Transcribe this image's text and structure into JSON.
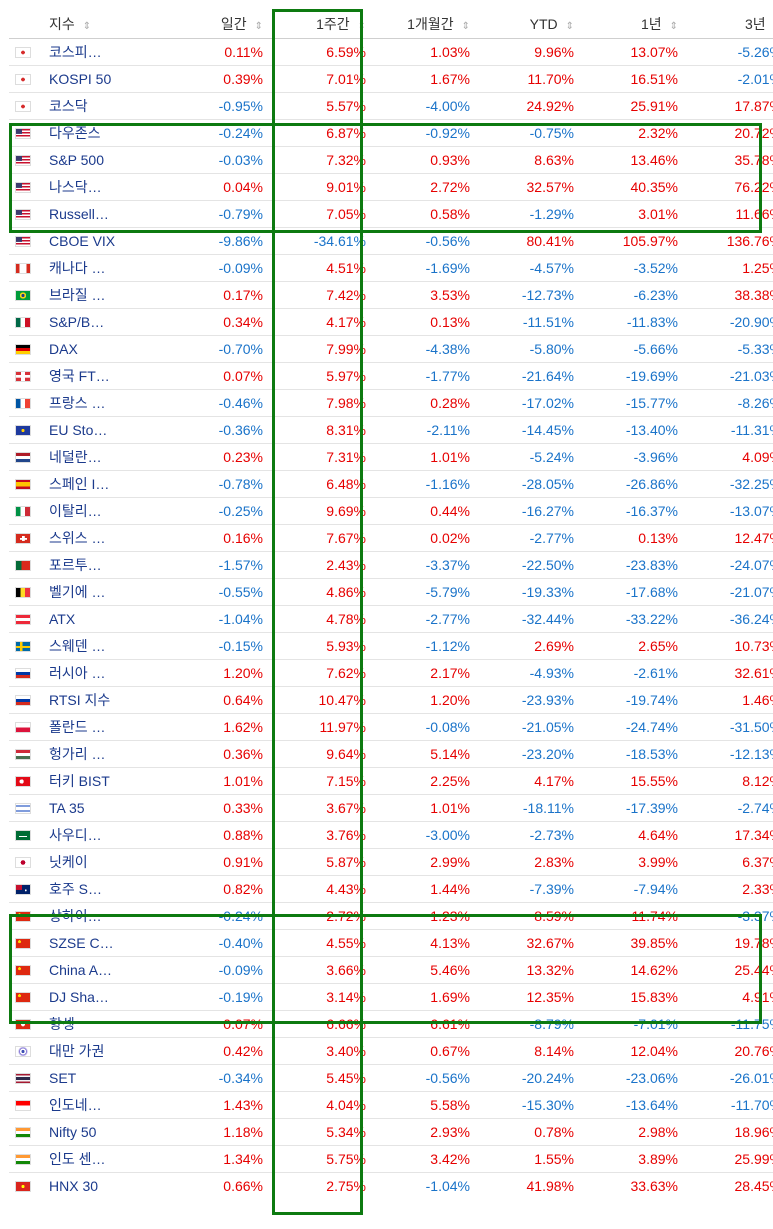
{
  "headers": {
    "name": "지수",
    "daily": "일간",
    "weekly": "1주간",
    "monthly": "1개월간",
    "ytd": "YTD",
    "oneyear": "1년",
    "threeyear": "3년",
    "sort_icon": "⇕"
  },
  "colors": {
    "up": "#e60000",
    "down": "#1a73c9",
    "highlight": "#0d7a10",
    "name": "#1b3a8c"
  },
  "rows": [
    {
      "flag": "kr",
      "name": "코스피…",
      "d": "0.11%",
      "w": "6.59%",
      "m": "1.03%",
      "ytd": "9.96%",
      "y1": "13.07%",
      "y3": "-5.26%"
    },
    {
      "flag": "kr",
      "name": "KOSPI 50",
      "d": "0.39%",
      "w": "7.01%",
      "m": "1.67%",
      "ytd": "11.70%",
      "y1": "16.51%",
      "y3": "-2.01%"
    },
    {
      "flag": "kr",
      "name": "코스닥",
      "d": "-0.95%",
      "w": "5.57%",
      "m": "-4.00%",
      "ytd": "24.92%",
      "y1": "25.91%",
      "y3": "17.87%"
    },
    {
      "flag": "us",
      "name": "다우존스",
      "d": "-0.24%",
      "w": "6.87%",
      "m": "-0.92%",
      "ytd": "-0.75%",
      "y1": "2.32%",
      "y3": "20.72%"
    },
    {
      "flag": "us",
      "name": "S&P 500",
      "d": "-0.03%",
      "w": "7.32%",
      "m": "0.93%",
      "ytd": "8.63%",
      "y1": "13.46%",
      "y3": "35.78%"
    },
    {
      "flag": "us",
      "name": "나스닥…",
      "d": "0.04%",
      "w": "9.01%",
      "m": "2.72%",
      "ytd": "32.57%",
      "y1": "40.35%",
      "y3": "76.22%"
    },
    {
      "flag": "us",
      "name": "Russell…",
      "d": "-0.79%",
      "w": "7.05%",
      "m": "0.58%",
      "ytd": "-1.29%",
      "y1": "3.01%",
      "y3": "11.66%"
    },
    {
      "flag": "us",
      "name": "CBOE VIX",
      "d": "-9.86%",
      "w": "-34.61%",
      "m": "-0.56%",
      "ytd": "80.41%",
      "y1": "105.97%",
      "y3": "136.76%"
    },
    {
      "flag": "ca",
      "name": "캐나다 …",
      "d": "-0.09%",
      "w": "4.51%",
      "m": "-1.69%",
      "ytd": "-4.57%",
      "y1": "-3.52%",
      "y3": "1.25%"
    },
    {
      "flag": "br",
      "name": "브라질 …",
      "d": "0.17%",
      "w": "7.42%",
      "m": "3.53%",
      "ytd": "-12.73%",
      "y1": "-6.23%",
      "y3": "38.38%"
    },
    {
      "flag": "mx",
      "name": "S&P/B…",
      "d": "0.34%",
      "w": "4.17%",
      "m": "0.13%",
      "ytd": "-11.51%",
      "y1": "-11.83%",
      "y3": "-20.90%"
    },
    {
      "flag": "de",
      "name": "DAX",
      "d": "-0.70%",
      "w": "7.99%",
      "m": "-4.38%",
      "ytd": "-5.80%",
      "y1": "-5.66%",
      "y3": "-5.33%"
    },
    {
      "flag": "gb",
      "name": "영국 FT…",
      "d": "0.07%",
      "w": "5.97%",
      "m": "-1.77%",
      "ytd": "-21.64%",
      "y1": "-19.69%",
      "y3": "-21.03%"
    },
    {
      "flag": "fr",
      "name": "프랑스 …",
      "d": "-0.46%",
      "w": "7.98%",
      "m": "0.28%",
      "ytd": "-17.02%",
      "y1": "-15.77%",
      "y3": "-8.26%"
    },
    {
      "flag": "eu",
      "name": "EU Sto…",
      "d": "-0.36%",
      "w": "8.31%",
      "m": "-2.11%",
      "ytd": "-14.45%",
      "y1": "-13.40%",
      "y3": "-11.31%"
    },
    {
      "flag": "nl",
      "name": "네덜란…",
      "d": "0.23%",
      "w": "7.31%",
      "m": "1.01%",
      "ytd": "-5.24%",
      "y1": "-3.96%",
      "y3": "4.09%"
    },
    {
      "flag": "es",
      "name": "스페인 I…",
      "d": "-0.78%",
      "w": "6.48%",
      "m": "-1.16%",
      "ytd": "-28.05%",
      "y1": "-26.86%",
      "y3": "-32.25%"
    },
    {
      "flag": "it",
      "name": "이탈리…",
      "d": "-0.25%",
      "w": "9.69%",
      "m": "0.44%",
      "ytd": "-16.27%",
      "y1": "-16.37%",
      "y3": "-13.07%"
    },
    {
      "flag": "ch",
      "name": "스위스 …",
      "d": "0.16%",
      "w": "7.67%",
      "m": "0.02%",
      "ytd": "-2.77%",
      "y1": "0.13%",
      "y3": "12.47%"
    },
    {
      "flag": "pt",
      "name": "포르투…",
      "d": "-1.57%",
      "w": "2.43%",
      "m": "-3.37%",
      "ytd": "-22.50%",
      "y1": "-23.83%",
      "y3": "-24.07%"
    },
    {
      "flag": "be",
      "name": "벨기에 …",
      "d": "-0.55%",
      "w": "4.86%",
      "m": "-5.79%",
      "ytd": "-19.33%",
      "y1": "-17.68%",
      "y3": "-21.07%"
    },
    {
      "flag": "at",
      "name": "ATX",
      "d": "-1.04%",
      "w": "4.78%",
      "m": "-2.77%",
      "ytd": "-32.44%",
      "y1": "-33.22%",
      "y3": "-36.24%"
    },
    {
      "flag": "se",
      "name": "스웨덴 …",
      "d": "-0.15%",
      "w": "5.93%",
      "m": "-1.12%",
      "ytd": "2.69%",
      "y1": "2.65%",
      "y3": "10.73%"
    },
    {
      "flag": "ru",
      "name": "러시아 …",
      "d": "1.20%",
      "w": "7.62%",
      "m": "2.17%",
      "ytd": "-4.93%",
      "y1": "-2.61%",
      "y3": "32.61%"
    },
    {
      "flag": "ru",
      "name": "RTSI 지수",
      "d": "0.64%",
      "w": "10.47%",
      "m": "1.20%",
      "ytd": "-23.93%",
      "y1": "-19.74%",
      "y3": "1.46%"
    },
    {
      "flag": "pl",
      "name": "폴란드 …",
      "d": "1.62%",
      "w": "11.97%",
      "m": "-0.08%",
      "ytd": "-21.05%",
      "y1": "-24.74%",
      "y3": "-31.50%"
    },
    {
      "flag": "hu",
      "name": "헝가리 …",
      "d": "0.36%",
      "w": "9.64%",
      "m": "5.14%",
      "ytd": "-23.20%",
      "y1": "-18.53%",
      "y3": "-12.13%"
    },
    {
      "flag": "tr",
      "name": "터키 BIST",
      "d": "1.01%",
      "w": "7.15%",
      "m": "2.25%",
      "ytd": "4.17%",
      "y1": "15.55%",
      "y3": "8.12%"
    },
    {
      "flag": "il",
      "name": "TA 35",
      "d": "0.33%",
      "w": "3.67%",
      "m": "1.01%",
      "ytd": "-18.11%",
      "y1": "-17.39%",
      "y3": "-2.74%"
    },
    {
      "flag": "sa",
      "name": "사우디…",
      "d": "0.88%",
      "w": "3.76%",
      "m": "-3.00%",
      "ytd": "-2.73%",
      "y1": "4.64%",
      "y3": "17.34%"
    },
    {
      "flag": "jp",
      "name": "닛케이",
      "d": "0.91%",
      "w": "5.87%",
      "m": "2.99%",
      "ytd": "2.83%",
      "y1": "3.99%",
      "y3": "6.37%"
    },
    {
      "flag": "au",
      "name": "호주 S…",
      "d": "0.82%",
      "w": "4.43%",
      "m": "1.44%",
      "ytd": "-7.39%",
      "y1": "-7.94%",
      "y3": "2.33%"
    },
    {
      "flag": "cn",
      "name": "상하이…",
      "d": "-0.24%",
      "w": "2.72%",
      "m": "1.23%",
      "ytd": "8.59%",
      "y1": "11.74%",
      "y3": "-3.37%"
    },
    {
      "flag": "cn",
      "name": "SZSE C…",
      "d": "-0.40%",
      "w": "4.55%",
      "m": "4.13%",
      "ytd": "32.67%",
      "y1": "39.85%",
      "y3": "19.78%"
    },
    {
      "flag": "cn",
      "name": "China A…",
      "d": "-0.09%",
      "w": "3.66%",
      "m": "5.46%",
      "ytd": "13.32%",
      "y1": "14.62%",
      "y3": "25.44%"
    },
    {
      "flag": "cn",
      "name": "DJ Sha…",
      "d": "-0.19%",
      "w": "3.14%",
      "m": "1.69%",
      "ytd": "12.35%",
      "y1": "15.83%",
      "y3": "4.91%"
    },
    {
      "flag": "hk",
      "name": "항셍",
      "d": "0.07%",
      "w": "6.66%",
      "m": "6.61%",
      "ytd": "-8.79%",
      "y1": "-7.01%",
      "y3": "-11.75%"
    },
    {
      "flag": "tw",
      "name": "대만 가권",
      "d": "0.42%",
      "w": "3.40%",
      "m": "0.67%",
      "ytd": "8.14%",
      "y1": "12.04%",
      "y3": "20.76%"
    },
    {
      "flag": "th",
      "name": "SET",
      "d": "-0.34%",
      "w": "5.45%",
      "m": "-0.56%",
      "ytd": "-20.24%",
      "y1": "-23.06%",
      "y3": "-26.01%"
    },
    {
      "flag": "id",
      "name": "인도네…",
      "d": "1.43%",
      "w": "4.04%",
      "m": "5.58%",
      "ytd": "-15.30%",
      "y1": "-13.64%",
      "y3": "-11.70%"
    },
    {
      "flag": "in",
      "name": "Nifty 50",
      "d": "1.18%",
      "w": "5.34%",
      "m": "2.93%",
      "ytd": "0.78%",
      "y1": "2.98%",
      "y3": "18.96%"
    },
    {
      "flag": "in",
      "name": "인도 센…",
      "d": "1.34%",
      "w": "5.75%",
      "m": "3.42%",
      "ytd": "1.55%",
      "y1": "3.89%",
      "y3": "25.99%"
    },
    {
      "flag": "vn",
      "name": "HNX 30",
      "d": "0.66%",
      "w": "2.75%",
      "m": "-1.04%",
      "ytd": "41.98%",
      "y1": "33.63%",
      "y3": "28.45%"
    }
  ]
}
